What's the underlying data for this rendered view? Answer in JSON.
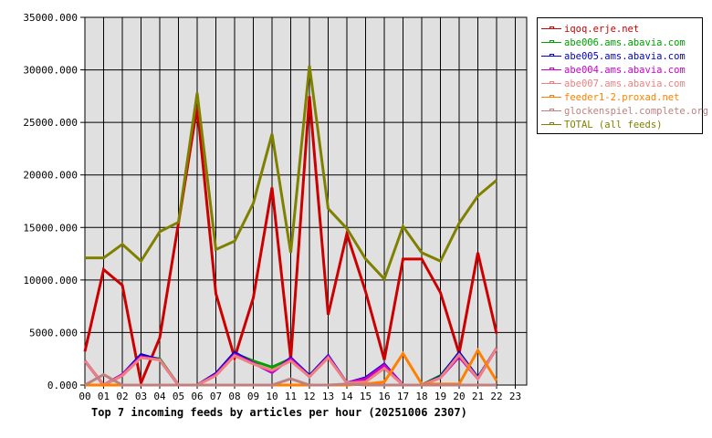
{
  "chart_data": {
    "type": "line",
    "title": "Top 7 incoming feeds by articles per hour (20251006 2307)",
    "xlabel": "",
    "ylabel": "",
    "ylim": [
      0,
      35000
    ],
    "grid": true,
    "legend_position": "right",
    "y_ticks": [
      "0.000",
      "5000.000",
      "10000.000",
      "15000.000",
      "20000.000",
      "25000.000",
      "30000.000",
      "35000.000"
    ],
    "categories": [
      "00",
      "01",
      "02",
      "03",
      "04",
      "05",
      "06",
      "07",
      "08",
      "09",
      "10",
      "11",
      "12",
      "13",
      "14",
      "15",
      "16",
      "17",
      "18",
      "19",
      "20",
      "21",
      "22",
      "23"
    ],
    "series": [
      {
        "name": "iqoq.erje.net",
        "color": "#cc0000",
        "values": [
          3200,
          11000,
          9500,
          200,
          4500,
          15400,
          26500,
          8700,
          2600,
          8300,
          18800,
          2500,
          27500,
          6700,
          14400,
          8900,
          2400,
          12000,
          12000,
          8800,
          3000,
          12600,
          4900
        ]
      },
      {
        "name": "abe006.ams.abavia.com",
        "color": "#00a000",
        "values": [
          2300,
          0,
          900,
          2700,
          2500,
          0,
          0,
          1000,
          3000,
          2300,
          1700,
          2500,
          800,
          2700,
          200,
          500,
          1800,
          0,
          0,
          900,
          3000,
          700,
          3500
        ]
      },
      {
        "name": "abe005.ams.abavia.com",
        "color": "#0000cc",
        "values": [
          2300,
          0,
          1000,
          2900,
          2400,
          0,
          0,
          1100,
          3100,
          2100,
          1200,
          2600,
          900,
          2800,
          200,
          700,
          2000,
          0,
          0,
          800,
          3100,
          700,
          3500
        ]
      },
      {
        "name": "abe004.ams.abavia.com",
        "color": "#cc00cc",
        "values": [
          2300,
          0,
          1000,
          2700,
          2400,
          0,
          0,
          1000,
          2900,
          2100,
          1200,
          2500,
          800,
          2700,
          200,
          600,
          1900,
          0,
          0,
          700,
          2700,
          600,
          3500
        ]
      },
      {
        "name": "abe007.ams.abavia.com",
        "color": "#f08080",
        "values": [
          2300,
          0,
          900,
          2600,
          2400,
          0,
          0,
          900,
          2800,
          2000,
          1400,
          2300,
          800,
          2600,
          200,
          300,
          1600,
          0,
          0,
          700,
          2900,
          600,
          3500
        ]
      },
      {
        "name": "feeder1-2.proxad.net",
        "color": "#ff8000",
        "values": [
          0,
          0,
          0,
          0,
          0,
          0,
          0,
          0,
          0,
          0,
          0,
          0,
          0,
          0,
          0,
          100,
          300,
          3000,
          100,
          100,
          100,
          3300,
          400
        ]
      },
      {
        "name": "glockenspiel.complete.org",
        "color": "#c08080",
        "values": [
          0,
          1000,
          0,
          0,
          0,
          0,
          0,
          0,
          0,
          0,
          0,
          600,
          0,
          0,
          100,
          0,
          0,
          0,
          0,
          0,
          0,
          0,
          0
        ]
      },
      {
        "name": "TOTAL (all feeds)",
        "color": "#808000",
        "values": [
          12100,
          12100,
          13400,
          11800,
          14600,
          15500,
          27800,
          12900,
          13700,
          17300,
          23900,
          12600,
          30400,
          16800,
          14900,
          12000,
          10100,
          15100,
          12600,
          11800,
          15400,
          18000,
          19500
        ]
      }
    ]
  },
  "legend": {
    "items": [
      {
        "label": "iqoq.erje.net",
        "color": "#cc0000"
      },
      {
        "label": "abe006.ams.abavia.com",
        "color": "#00a000"
      },
      {
        "label": "abe005.ams.abavia.com",
        "color": "#0000cc"
      },
      {
        "label": "abe004.ams.abavia.com",
        "color": "#cc00cc"
      },
      {
        "label": "abe007.ams.abavia.com",
        "color": "#f08080"
      },
      {
        "label": "feeder1-2.proxad.net",
        "color": "#ff8000"
      },
      {
        "label": "glockenspiel.complete.org",
        "color": "#c08080"
      },
      {
        "label": "TOTAL (all feeds)",
        "color": "#808000"
      }
    ]
  },
  "colors": {
    "plot_background": "#e0e0e0",
    "grid": "#000000"
  }
}
